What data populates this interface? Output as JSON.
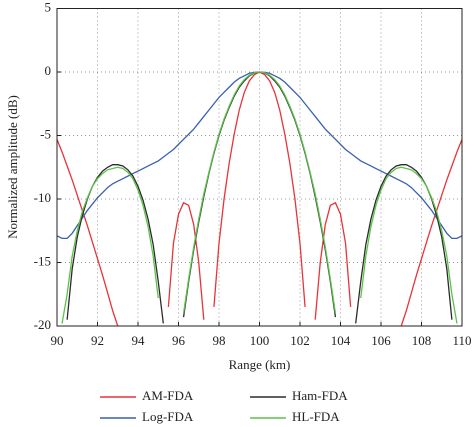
{
  "chart_data": {
    "type": "line",
    "xlabel": "Range (km)",
    "ylabel": "Normalized amplitude (dB)",
    "xlim": [
      90,
      110
    ],
    "ylim": [
      -20,
      5
    ],
    "xticks": [
      90,
      92,
      94,
      96,
      98,
      100,
      102,
      104,
      106,
      108,
      110
    ],
    "yticks": [
      5,
      0,
      -5,
      -10,
      -15,
      -20
    ],
    "grid": true,
    "x": [
      90,
      90.25,
      90.5,
      90.75,
      91,
      91.25,
      91.5,
      91.75,
      92,
      92.25,
      92.5,
      92.75,
      93,
      93.25,
      93.5,
      93.75,
      94,
      94.25,
      94.5,
      94.75,
      95,
      95.25,
      95.5,
      95.75,
      96,
      96.25,
      96.5,
      96.75,
      97,
      97.25,
      97.5,
      97.75,
      98,
      98.25,
      98.5,
      98.75,
      99,
      99.25,
      99.5,
      99.75,
      100,
      100.25,
      100.5,
      100.75,
      101,
      101.25,
      101.5,
      101.75,
      102,
      102.25,
      102.5,
      102.75,
      103,
      103.25,
      103.5,
      103.75,
      104,
      104.25,
      104.5,
      104.75,
      105,
      105.25,
      105.5,
      105.75,
      106,
      106.25,
      106.5,
      106.75,
      107,
      107.25,
      107.5,
      107.75,
      108,
      108.25,
      108.5,
      108.75,
      109,
      109.25,
      109.5,
      109.75,
      110
    ],
    "series": [
      {
        "name": "AM-FDA",
        "color": "#e8333a",
        "values": [
          -5.3,
          -6.3,
          -7.4,
          -8.5,
          -9.7,
          -10.9,
          -12.1,
          -13.4,
          -14.7,
          -16.0,
          -17.4,
          -18.8,
          -20,
          null,
          null,
          null,
          null,
          null,
          null,
          null,
          null,
          null,
          -18.5,
          -13.5,
          -11.2,
          -10.3,
          -10.5,
          -12.0,
          -15.0,
          -19.5,
          null,
          -18.5,
          -13.5,
          -10.0,
          -7.2,
          -4.9,
          -3.0,
          -1.6,
          -0.7,
          -0.2,
          0,
          -0.2,
          -0.7,
          -1.6,
          -3.0,
          -4.9,
          -7.2,
          -10.0,
          -13.5,
          -18.5,
          null,
          -19.5,
          -15.0,
          -12.0,
          -10.5,
          -10.3,
          -11.2,
          -13.5,
          -18.5,
          null,
          null,
          null,
          null,
          null,
          null,
          null,
          null,
          null,
          -20,
          -18.8,
          -17.4,
          -16.0,
          -14.7,
          -13.4,
          -12.1,
          -10.9,
          -9.7,
          -8.5,
          -7.4,
          -6.3,
          -5.3
        ]
      },
      {
        "name": "Log-FDA",
        "color": "#3a5fb5",
        "values": [
          -12.9,
          -13.1,
          -13.1,
          -12.7,
          -12.1,
          -11.5,
          -10.9,
          -10.4,
          -9.9,
          -9.5,
          -9.1,
          -8.8,
          -8.6,
          -8.4,
          -8.2,
          -8.0,
          -7.8,
          -7.6,
          -7.4,
          -7.2,
          -7.0,
          -6.7,
          -6.4,
          -6.1,
          -5.7,
          -5.3,
          -4.9,
          -4.5,
          -4.0,
          -3.5,
          -3.0,
          -2.5,
          -2.0,
          -1.6,
          -1.2,
          -0.8,
          -0.5,
          -0.3,
          -0.1,
          -0.03,
          0,
          -0.03,
          -0.1,
          -0.3,
          -0.5,
          -0.8,
          -1.2,
          -1.6,
          -2.0,
          -2.5,
          -3.0,
          -3.5,
          -4.0,
          -4.5,
          -4.9,
          -5.3,
          -5.7,
          -6.1,
          -6.4,
          -6.7,
          -7.0,
          -7.2,
          -7.4,
          -7.6,
          -7.8,
          -8.0,
          -8.2,
          -8.4,
          -8.6,
          -8.8,
          -9.1,
          -9.5,
          -9.9,
          -10.4,
          -10.9,
          -11.5,
          -12.1,
          -12.7,
          -13.1,
          -13.1,
          -12.9
        ]
      },
      {
        "name": "Ham-FDA",
        "color": "#2b2b2b",
        "values": [
          null,
          null,
          -19.5,
          -15.5,
          -13,
          -11.3,
          -10,
          -9.0,
          -8.3,
          -7.8,
          -7.5,
          -7.3,
          -7.3,
          -7.4,
          -7.7,
          -8.2,
          -9.0,
          -10.1,
          -11.6,
          -13.6,
          -16.5,
          -19.8,
          null,
          null,
          null,
          -19.3,
          -16.5,
          -14.0,
          -11.8,
          -9.8,
          -8.0,
          -6.4,
          -5.0,
          -3.8,
          -2.8,
          -1.9,
          -1.2,
          -0.7,
          -0.3,
          -0.07,
          0,
          -0.07,
          -0.3,
          -0.7,
          -1.2,
          -1.9,
          -2.8,
          -3.8,
          -5.0,
          -6.4,
          -8.0,
          -9.8,
          -11.8,
          -14.0,
          -16.5,
          -19.3,
          null,
          null,
          null,
          -19.8,
          -16.5,
          -13.6,
          -11.6,
          -10.1,
          -9.0,
          -8.2,
          -7.7,
          -7.4,
          -7.3,
          -7.3,
          -7.5,
          -7.8,
          -8.3,
          -9.0,
          -10,
          -11.3,
          -13,
          -15.5,
          -19.5,
          null,
          null
        ]
      },
      {
        "name": "HL-FDA",
        "color": "#5cc24a",
        "values": [
          null,
          -19.8,
          -17.5,
          -14.5,
          -12.5,
          -11.0,
          -9.9,
          -9.0,
          -8.4,
          -8.0,
          -7.7,
          -7.6,
          -7.5,
          -7.6,
          -7.9,
          -8.4,
          -9.3,
          -10.5,
          -12.2,
          -14.5,
          -17.8,
          null,
          null,
          null,
          null,
          -19.0,
          -16.3,
          -13.8,
          -11.6,
          -9.6,
          -7.9,
          -6.3,
          -4.9,
          -3.7,
          -2.7,
          -1.8,
          -1.1,
          -0.6,
          -0.25,
          -0.06,
          0,
          -0.06,
          -0.25,
          -0.6,
          -1.1,
          -1.8,
          -2.7,
          -3.7,
          -4.9,
          -6.3,
          -7.9,
          -9.6,
          -11.6,
          -13.8,
          -16.3,
          -19.0,
          null,
          null,
          null,
          null,
          -17.8,
          -14.5,
          -12.2,
          -10.5,
          -9.3,
          -8.4,
          -7.9,
          -7.6,
          -7.5,
          -7.6,
          -7.7,
          -8.0,
          -8.4,
          -9.0,
          -9.9,
          -11.0,
          -12.5,
          -14.5,
          -17.5,
          -19.8,
          null
        ]
      }
    ]
  }
}
